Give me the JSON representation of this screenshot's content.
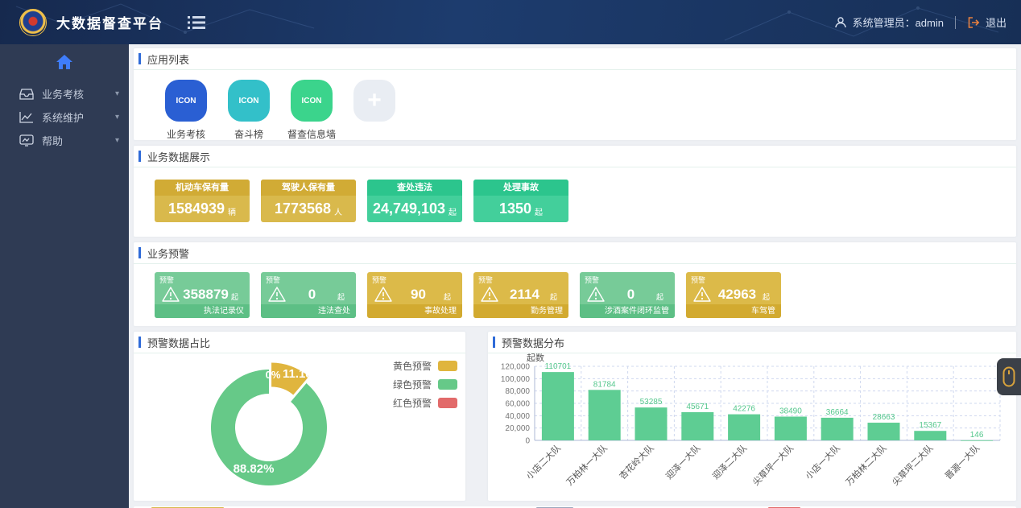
{
  "header": {
    "app_title": "大数据督查平台",
    "user_label": "系统管理员：admin",
    "logout_label": "退出"
  },
  "sidebar": {
    "items": [
      {
        "label": "业务考核",
        "icon": "inbox-icon"
      },
      {
        "label": "系统维护",
        "icon": "line-chart-icon"
      },
      {
        "label": "帮助",
        "icon": "help-screen-icon"
      }
    ]
  },
  "sections": {
    "apps": {
      "title": "应用列表",
      "items": [
        {
          "label": "业务考核",
          "icon_text": "ICON",
          "color": "#2a5fd3"
        },
        {
          "label": "奋斗榜",
          "icon_text": "ICON",
          "color": "#33c0c9"
        },
        {
          "label": "督查信息墙",
          "icon_text": "ICON",
          "color": "#3bd48c"
        }
      ],
      "add_label": "+"
    },
    "stats": {
      "title": "业务数据展示",
      "cards": [
        {
          "label": "机动车保有量",
          "value": "1584939",
          "unit": "辆",
          "color": "yellow"
        },
        {
          "label": "驾驶人保有量",
          "value": "1773568",
          "unit": "人",
          "color": "yellow"
        },
        {
          "label": "查处违法",
          "value": "24,749,103",
          "unit": "起",
          "color": "green"
        },
        {
          "label": "处理事故",
          "value": "1350",
          "unit": "起",
          "color": "green"
        }
      ]
    },
    "warnings": {
      "title": "业务预警",
      "tag": "预警",
      "unit": "起",
      "cards": [
        {
          "label": "执法记录仪",
          "value": "358879",
          "color": "green"
        },
        {
          "label": "违法查处",
          "value": "0",
          "color": "green"
        },
        {
          "label": "事故处理",
          "value": "90",
          "color": "yellow"
        },
        {
          "label": "勤务管理",
          "value": "2114",
          "color": "yellow"
        },
        {
          "label": "涉酒案件闭环监管",
          "value": "0",
          "color": "green"
        },
        {
          "label": "车驾管",
          "value": "42963",
          "color": "yellow"
        }
      ]
    }
  },
  "chart_data": [
    {
      "type": "pie",
      "donut": true,
      "title": "预警数据占比",
      "labels": [
        "黄色预警",
        "绿色预警",
        "红色预警"
      ],
      "values": [
        11.18,
        88.82,
        0
      ],
      "display_labels": [
        "11.18%",
        "88.82%",
        "0%"
      ],
      "colors": [
        "#e0b53e",
        "#66c988",
        "#e26a6a"
      ],
      "legend_position": "top-right"
    },
    {
      "type": "bar",
      "title": "预警数据分布",
      "ylabel": "起数",
      "categories": [
        "小店二大队",
        "万柏林一大队",
        "杏花岭大队",
        "迎泽一大队",
        "迎泽二大队",
        "尖草坪一大队",
        "小店一大队",
        "万柏林二大队",
        "尖草坪二大队",
        "晋源一大队"
      ],
      "values": [
        110701,
        81784,
        53285,
        45671,
        42276,
        38490,
        36664,
        28663,
        15367,
        146
      ],
      "ylim": [
        0,
        120000
      ],
      "ytick_step": 20000,
      "bar_color": "#5ecd93",
      "value_label_color": "#54c78c",
      "grid": true
    }
  ],
  "colors": {
    "accent_blue": "#2f6bd8",
    "header_navy": "#1d3c6e",
    "sidebar_bg": "#2f3b54",
    "stat_yellow": "#d9b94c",
    "stat_green": "#43cf9b",
    "warn_green": "#77cb98",
    "warn_yellow": "#dcba49",
    "logout_orange": "#e8803f"
  }
}
